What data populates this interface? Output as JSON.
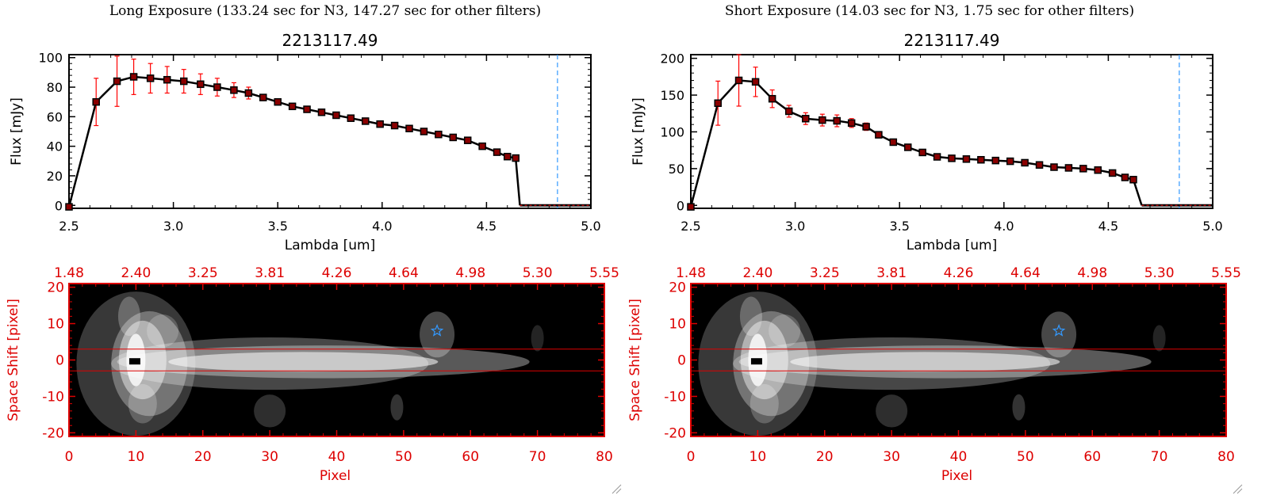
{
  "panels": [
    {
      "heading": "Long Exposure (133.24 sec for N3, 147.27 sec for other filters)",
      "spectrum": {
        "title": "2213117.49",
        "xlabel": "Lambda [um]",
        "ylabel": "Flux [mJy]",
        "xlim": [
          2.5,
          5.0
        ],
        "ylim": [
          -2,
          102
        ],
        "xticks": [
          "2.5",
          "3.0",
          "3.5",
          "4.0",
          "4.5",
          "5.0"
        ],
        "xtick_values": [
          2.5,
          3.0,
          3.5,
          4.0,
          4.5,
          5.0
        ],
        "yticks": [
          "0",
          "20",
          "40",
          "60",
          "80",
          "100"
        ],
        "ytick_values": [
          0,
          20,
          40,
          60,
          80,
          100
        ]
      },
      "image": {
        "ylabel": "Space Shift [pixel]",
        "xlabel": "Pixel",
        "top_ticks": [
          "1.48",
          "2.40",
          "3.25",
          "3.81",
          "4.26",
          "4.64",
          "4.98",
          "5.30",
          "5.55"
        ],
        "xticks": [
          "0",
          "10",
          "20",
          "30",
          "40",
          "50",
          "60",
          "70",
          "80"
        ],
        "yticks": [
          "20",
          "10",
          "0",
          "-10",
          "-20"
        ]
      }
    },
    {
      "heading": "Short Exposure (14.03 sec for N3, 1.75 sec for other filters)",
      "spectrum": {
        "title": "2213117.49",
        "xlabel": "Lambda [um]",
        "ylabel": "Flux [mJy]",
        "xlim": [
          2.5,
          5.0
        ],
        "ylim": [
          -4,
          205
        ],
        "xticks": [
          "2.5",
          "3.0",
          "3.5",
          "4.0",
          "4.5",
          "5.0"
        ],
        "xtick_values": [
          2.5,
          3.0,
          3.5,
          4.0,
          4.5,
          5.0
        ],
        "yticks": [
          "0",
          "50",
          "100",
          "150",
          "200"
        ],
        "ytick_values": [
          0,
          50,
          100,
          150,
          200
        ]
      },
      "image": {
        "ylabel": "Space Shift [pixel]",
        "xlabel": "Pixel",
        "top_ticks": [
          "1.48",
          "2.40",
          "3.25",
          "3.81",
          "4.26",
          "4.64",
          "4.98",
          "5.30",
          "5.55"
        ],
        "xticks": [
          "0",
          "10",
          "20",
          "30",
          "40",
          "50",
          "60",
          "70",
          "80"
        ],
        "yticks": [
          "20",
          "10",
          "0",
          "-10",
          "-20"
        ]
      }
    }
  ],
  "colors": {
    "spectrum_line": "#000000",
    "marker_fill": "#8b0000",
    "error_bar": "#ff0000",
    "cutoff_line": "#3399ff",
    "image_axes": "#dd0000",
    "star_marker": "#3399ff"
  },
  "chart_data": [
    {
      "type": "line",
      "title": "2213117.49",
      "xlabel": "Lambda [um]",
      "ylabel": "Flux [mJy]",
      "xlim": [
        2.5,
        5.0
      ],
      "ylim": [
        -2,
        102
      ],
      "vline_x": 4.84,
      "series": [
        {
          "x": [
            2.5,
            2.63,
            2.73,
            2.81,
            2.89,
            2.97,
            3.05,
            3.13,
            3.21,
            3.29,
            3.36,
            3.43,
            3.5,
            3.57,
            3.64,
            3.71,
            3.78,
            3.85,
            3.92,
            3.99,
            4.06,
            4.13,
            4.2,
            4.27,
            4.34,
            4.41,
            4.48,
            4.55,
            4.6,
            4.64
          ],
          "y": [
            -1,
            70,
            84,
            87,
            86,
            85,
            84,
            82,
            80,
            78,
            76,
            73,
            70,
            67,
            65,
            63,
            61,
            59,
            57,
            55,
            54,
            52,
            50,
            48,
            46,
            44,
            40,
            36,
            33,
            32
          ],
          "yerr": [
            0,
            16,
            17,
            12,
            10,
            9,
            8,
            7,
            6,
            5,
            4,
            2,
            2,
            1,
            1,
            1,
            1,
            1,
            1,
            1,
            1,
            1,
            1,
            1,
            1,
            1,
            1,
            1,
            1,
            1
          ]
        }
      ],
      "flat_segment": {
        "x": [
          4.66,
          5.0
        ],
        "y": 0
      }
    },
    {
      "type": "line",
      "title": "2213117.49",
      "xlabel": "Lambda [um]",
      "ylabel": "Flux [mJy]",
      "xlim": [
        2.5,
        5.0
      ],
      "ylim": [
        -4,
        205
      ],
      "vline_x": 4.84,
      "series": [
        {
          "x": [
            2.5,
            2.63,
            2.73,
            2.81,
            2.89,
            2.97,
            3.05,
            3.13,
            3.2,
            3.27,
            3.34,
            3.4,
            3.47,
            3.54,
            3.61,
            3.68,
            3.75,
            3.82,
            3.89,
            3.96,
            4.03,
            4.1,
            4.17,
            4.24,
            4.31,
            4.38,
            4.45,
            4.52,
            4.58,
            4.62
          ],
          "y": [
            -2,
            139,
            170,
            168,
            145,
            128,
            118,
            116,
            115,
            112,
            107,
            96,
            86,
            79,
            72,
            66,
            64,
            63,
            62,
            61,
            60,
            58,
            55,
            52,
            51,
            50,
            48,
            44,
            38,
            35
          ],
          "yerr": [
            0,
            30,
            35,
            20,
            12,
            8,
            8,
            8,
            8,
            6,
            5,
            3,
            2,
            2,
            1,
            1,
            1,
            1,
            1,
            1,
            1,
            1,
            1,
            1,
            1,
            1,
            1,
            1,
            1,
            1
          ]
        }
      ],
      "flat_segment": {
        "x": [
          4.66,
          5.0
        ],
        "y": 0
      }
    }
  ]
}
